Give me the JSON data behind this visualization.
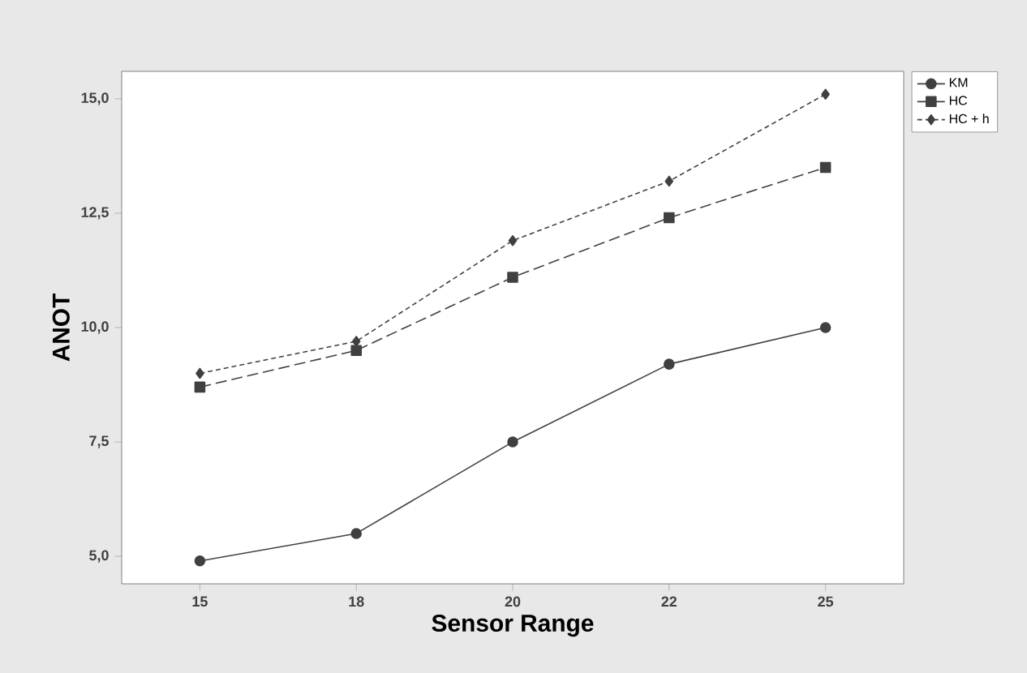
{
  "chart_data": {
    "type": "line",
    "xlabel": "Sensor Range",
    "ylabel": "ANOT",
    "categories": [
      "15",
      "18",
      "20",
      "22",
      "25"
    ],
    "series": [
      {
        "name": "KM",
        "color": "#404040",
        "marker": "circle",
        "line_style": "solid",
        "values": [
          4.9,
          5.5,
          7.5,
          9.2,
          10.0
        ]
      },
      {
        "name": "HC",
        "color": "#404040",
        "marker": "square",
        "line_style": "dashed",
        "values": [
          8.7,
          9.5,
          11.1,
          12.4,
          13.5
        ]
      },
      {
        "name": "HC + h",
        "color": "#404040",
        "marker": "diamond",
        "line_style": "dotted",
        "values": [
          9.0,
          9.7,
          11.9,
          13.2,
          15.1
        ]
      }
    ],
    "ylim": [
      4.4,
      15.6
    ],
    "yticks": [
      {
        "value": 5,
        "label": "5,0"
      },
      {
        "value": 7.5,
        "label": "7,5"
      },
      {
        "value": 10,
        "label": "10,0"
      },
      {
        "value": 12.5,
        "label": "12,5"
      },
      {
        "value": 15,
        "label": "15,0"
      }
    ],
    "legend": "right",
    "grid": false
  }
}
